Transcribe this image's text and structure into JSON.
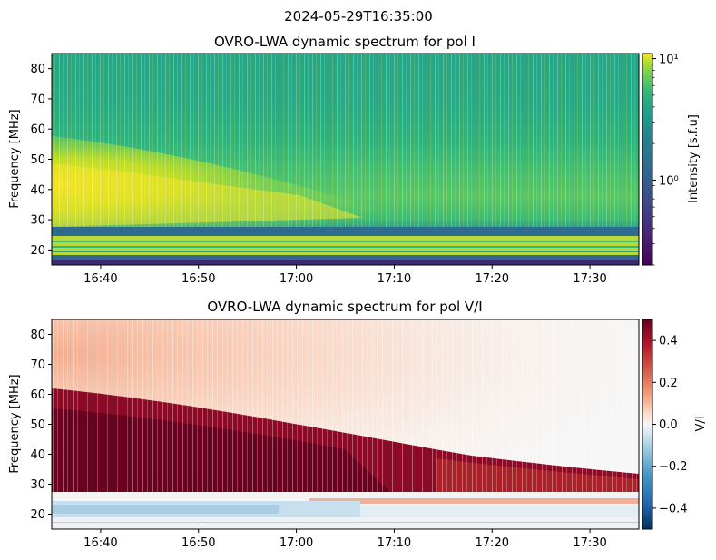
{
  "suptitle": "2024-05-29T16:35:00",
  "chart_data": [
    {
      "type": "heatmap",
      "title": "OVRO-LWA dynamic spectrum for pol I",
      "xlabel": "",
      "ylabel": "Frequency [MHz]",
      "x_tick_labels": [
        "16:40",
        "16:50",
        "17:00",
        "17:10",
        "17:20",
        "17:30"
      ],
      "x_tick_minutes": [
        5,
        15,
        25,
        35,
        45,
        55
      ],
      "x_range_minutes": [
        0,
        60
      ],
      "x_time_start": "16:35",
      "y_ticks": [
        20,
        30,
        40,
        50,
        60,
        70,
        80
      ],
      "ylim": [
        15,
        85
      ],
      "colorbar": {
        "label": "Intensity [s.f.u]",
        "scale": "log",
        "colormap": "viridis",
        "range": [
          0.2,
          11
        ],
        "major_ticks": [
          {
            "value": 1,
            "label": "10⁰"
          },
          {
            "value": 10,
            "label": "10¹"
          }
        ]
      }
    },
    {
      "type": "heatmap",
      "title": "OVRO-LWA dynamic spectrum for pol V/I",
      "xlabel": "",
      "ylabel": "Frequency [MHz]",
      "x_tick_labels": [
        "16:40",
        "16:50",
        "17:00",
        "17:10",
        "17:20",
        "17:30"
      ],
      "x_tick_minutes": [
        5,
        15,
        25,
        35,
        45,
        55
      ],
      "x_range_minutes": [
        0,
        60
      ],
      "x_time_start": "16:35",
      "y_ticks": [
        20,
        30,
        40,
        50,
        60,
        70,
        80
      ],
      "ylim": [
        15,
        85
      ],
      "colorbar": {
        "label": "V/I",
        "scale": "linear",
        "colormap": "RdBu_r",
        "range": [
          -0.5,
          0.5
        ],
        "ticks": [
          0.4,
          0.2,
          0.0,
          -0.2,
          -0.4
        ],
        "tick_labels": [
          "0.4",
          "0.2",
          "0.0",
          "−0.2",
          "−0.4"
        ]
      }
    }
  ]
}
